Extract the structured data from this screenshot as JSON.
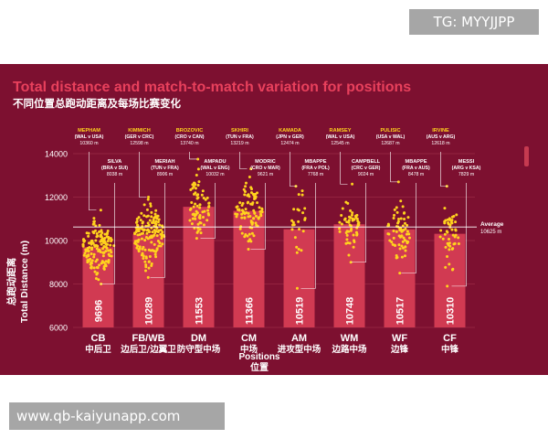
{
  "watermarks": {
    "top": "TG: MYYJJPP",
    "bottom": "www.qb-kaiyunapp.com"
  },
  "chart_data": {
    "type": "bar",
    "title": "Total distance and match-to-match variation for positions",
    "subtitle": "不同位置总跑动距离及每场比赛变化",
    "ylabel_cn": "总跑动距离",
    "ylabel": "Total Distance (m)",
    "xlabel": "Positions",
    "xlabel_cn": "位置",
    "ylim": [
      6000,
      14000
    ],
    "yticks": [
      6000,
      8000,
      10000,
      12000,
      14000
    ],
    "average": {
      "label": "Average",
      "value_label": "10625 m",
      "value": 10625
    },
    "categories": [
      {
        "code": "CB",
        "cn": "中后卫"
      },
      {
        "code": "FB/WB",
        "cn": "边后卫/边翼卫"
      },
      {
        "code": "DM",
        "cn": "防守型中场"
      },
      {
        "code": "CM",
        "cn": "中场"
      },
      {
        "code": "AM",
        "cn": "进攻型中场"
      },
      {
        "code": "WM",
        "cn": "边路中场"
      },
      {
        "code": "WF",
        "cn": "边锋"
      },
      {
        "code": "CF",
        "cn": "中锋"
      }
    ],
    "values": [
      9696,
      10289,
      11553,
      11366,
      10519,
      10748,
      10517,
      10310
    ],
    "bar_labels": [
      "9696",
      "10289",
      "11553",
      "11366",
      "10519",
      "10748",
      "10517",
      "10310"
    ],
    "spread": [
      {
        "max": 11400,
        "min": 8000,
        "n": 150
      },
      {
        "max": 12000,
        "min": 8300,
        "n": 150
      },
      {
        "max": 13750,
        "min": 10100,
        "n": 70
      },
      {
        "max": 13300,
        "min": 9600,
        "n": 90
      },
      {
        "max": 12500,
        "min": 7800,
        "n": 25
      },
      {
        "max": 12600,
        "min": 9000,
        "n": 55
      },
      {
        "max": 12700,
        "min": 8500,
        "n": 70
      },
      {
        "max": 12500,
        "min": 7900,
        "n": 50
      }
    ],
    "annotations": [
      {
        "name": "MEPHAM",
        "match": "(WAL v USA)",
        "value": "10360 m"
      },
      {
        "name": "SILVA",
        "match": "(BRA v SUI)",
        "value": "8038 m"
      },
      {
        "name": "KIMMICH",
        "match": "(GER v CRC)",
        "value": "12598 m"
      },
      {
        "name": "MERIAH",
        "match": "(TUN v FRA)",
        "value": "8906 m"
      },
      {
        "name": "BROZOVIC",
        "match": "(CRO v CAN)",
        "value": "13740 m"
      },
      {
        "name": "AMPADU",
        "match": "(WAL v ENG)",
        "value": "10032 m"
      },
      {
        "name": "SKHIRI",
        "match": "(TUN v FRA)",
        "value": "13219 m"
      },
      {
        "name": "MODRIC",
        "match": "(CRO v MAR)",
        "value": "9621 m"
      },
      {
        "name": "KAMADA",
        "match": "(JPN v GER)",
        "value": "12474 m"
      },
      {
        "name": "MBAPPE",
        "match": "(FRA v POL)",
        "value": "7768 m"
      },
      {
        "name": "RAMSEY",
        "match": "(WAL v USA)",
        "value": "12545 m"
      },
      {
        "name": "CAMPBELL",
        "match": "(CRC v GER)",
        "value": "9024 m"
      },
      {
        "name": "PULISIC",
        "match": "(USA v WAL)",
        "value": "12687 m"
      },
      {
        "name": "MBAPPE",
        "match": "(FRA v AUS)",
        "value": "8478 m"
      },
      {
        "name": "IRVINE",
        "match": "(AUS v ARG)",
        "value": "12618 m"
      },
      {
        "name": "MESSI",
        "match": "(ARG v KSA)",
        "value": "7829 m"
      }
    ],
    "colors": {
      "bg": "#7d1030",
      "bar": "#d13a52",
      "dot": "#ffd21e",
      "text": "#ffffff",
      "average": "#ffffff"
    }
  }
}
